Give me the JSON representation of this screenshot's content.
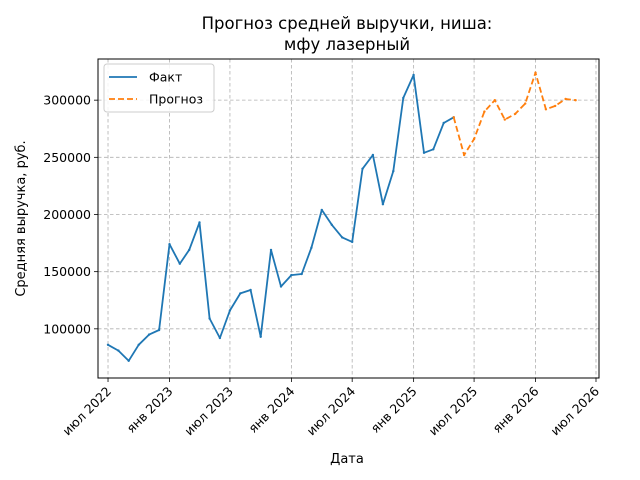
{
  "chart_data": {
    "type": "line",
    "title": "Прогноз средней выручки, ниша:\nмфу лазерный",
    "xlabel": "Дата",
    "ylabel": "Средняя выручка, руб.",
    "grid": true,
    "legend_position": "top-left",
    "xlim": [
      "2022-06-01",
      "2026-07-10"
    ],
    "ylim": [
      57000,
      336000
    ],
    "x_ticks": [
      {
        "date": "2022-07-01",
        "label": "июл 2022"
      },
      {
        "date": "2023-01-01",
        "label": "янв 2023"
      },
      {
        "date": "2023-07-01",
        "label": "июл 2023"
      },
      {
        "date": "2024-01-01",
        "label": "янв 2024"
      },
      {
        "date": "2024-07-01",
        "label": "июл 2024"
      },
      {
        "date": "2025-01-01",
        "label": "янв 2025"
      },
      {
        "date": "2025-07-01",
        "label": "июл 2025"
      },
      {
        "date": "2026-01-01",
        "label": "янв 2026"
      },
      {
        "date": "2026-07-01",
        "label": "июл 2026"
      }
    ],
    "y_ticks": [
      100000,
      150000,
      200000,
      250000,
      300000
    ],
    "y_tick_labels": [
      "100000",
      "150000",
      "200000",
      "250000",
      "300000"
    ],
    "series": [
      {
        "name": "Факт",
        "color": "#1f77b4",
        "style": "solid",
        "points": [
          {
            "x": "2022-07-01",
            "y": 86000
          },
          {
            "x": "2022-08-01",
            "y": 81000
          },
          {
            "x": "2022-09-01",
            "y": 72000
          },
          {
            "x": "2022-10-01",
            "y": 86000
          },
          {
            "x": "2022-11-01",
            "y": 95000
          },
          {
            "x": "2022-12-01",
            "y": 99000
          },
          {
            "x": "2023-01-01",
            "y": 174000
          },
          {
            "x": "2023-02-01",
            "y": 157000
          },
          {
            "x": "2023-03-01",
            "y": 169000
          },
          {
            "x": "2023-04-01",
            "y": 193000
          },
          {
            "x": "2023-05-01",
            "y": 109000
          },
          {
            "x": "2023-06-01",
            "y": 92000
          },
          {
            "x": "2023-07-01",
            "y": 116000
          },
          {
            "x": "2023-08-01",
            "y": 131000
          },
          {
            "x": "2023-09-01",
            "y": 134000
          },
          {
            "x": "2023-10-01",
            "y": 93000
          },
          {
            "x": "2023-11-01",
            "y": 169000
          },
          {
            "x": "2023-12-01",
            "y": 137000
          },
          {
            "x": "2024-01-01",
            "y": 147000
          },
          {
            "x": "2024-02-01",
            "y": 148000
          },
          {
            "x": "2024-03-01",
            "y": 171000
          },
          {
            "x": "2024-04-01",
            "y": 204000
          },
          {
            "x": "2024-05-01",
            "y": 191000
          },
          {
            "x": "2024-06-01",
            "y": 180000
          },
          {
            "x": "2024-07-01",
            "y": 176000
          },
          {
            "x": "2024-08-01",
            "y": 240000
          },
          {
            "x": "2024-09-01",
            "y": 252000
          },
          {
            "x": "2024-10-01",
            "y": 209000
          },
          {
            "x": "2024-11-01",
            "y": 238000
          },
          {
            "x": "2024-12-01",
            "y": 302000
          },
          {
            "x": "2025-01-01",
            "y": 322000
          },
          {
            "x": "2025-02-01",
            "y": 254000
          },
          {
            "x": "2025-03-01",
            "y": 257000
          },
          {
            "x": "2025-04-01",
            "y": 280000
          },
          {
            "x": "2025-05-01",
            "y": 285000
          }
        ]
      },
      {
        "name": "Прогноз",
        "color": "#ff7f0e",
        "style": "dashed",
        "points": [
          {
            "x": "2025-05-01",
            "y": 285000
          },
          {
            "x": "2025-06-01",
            "y": 252000
          },
          {
            "x": "2025-07-01",
            "y": 266000
          },
          {
            "x": "2025-08-01",
            "y": 290000
          },
          {
            "x": "2025-09-01",
            "y": 300000
          },
          {
            "x": "2025-10-01",
            "y": 283000
          },
          {
            "x": "2025-11-01",
            "y": 288000
          },
          {
            "x": "2025-12-01",
            "y": 297000
          },
          {
            "x": "2026-01-01",
            "y": 324000
          },
          {
            "x": "2026-02-01",
            "y": 292000
          },
          {
            "x": "2026-03-01",
            "y": 295000
          },
          {
            "x": "2026-04-01",
            "y": 301000
          },
          {
            "x": "2026-05-01",
            "y": 300000
          }
        ]
      }
    ]
  }
}
